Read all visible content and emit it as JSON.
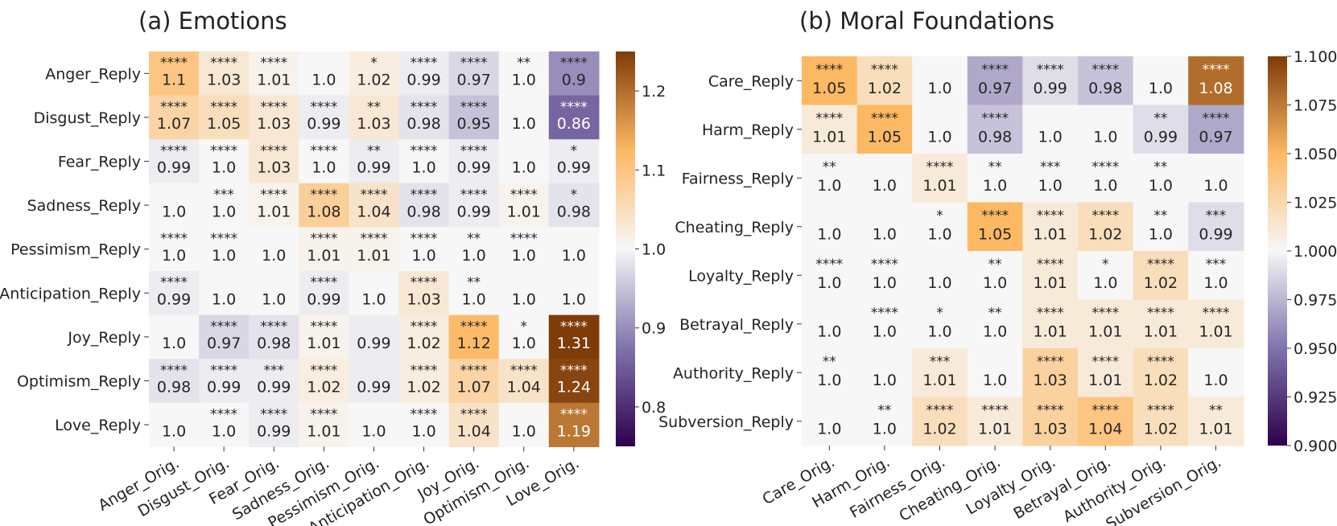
{
  "chart_data": [
    {
      "type": "heatmap",
      "title": "(a) Emotions",
      "rows": [
        "Anger_Reply",
        "Disgust_Reply",
        "Fear_Reply",
        "Sadness_Reply",
        "Pessimism_Reply",
        "Anticipation_Reply",
        "Joy_Reply",
        "Optimism_Reply",
        "Love_Reply"
      ],
      "cols": [
        "Anger_Orig.",
        "Disgust_Orig.",
        "Fear_Orig.",
        "Sadness_Orig.",
        "Pessimism_Orig.",
        "Anticipation_Orig.",
        "Joy_Orig.",
        "Optimism_Orig.",
        "Love_Orig."
      ],
      "values": [
        [
          "1.1",
          "1.03",
          "1.01",
          "1.0",
          "1.02",
          "0.99",
          "0.97",
          "1.0",
          "0.9"
        ],
        [
          "1.07",
          "1.05",
          "1.03",
          "0.99",
          "1.03",
          "0.98",
          "0.95",
          "1.0",
          "0.86"
        ],
        [
          "0.99",
          "1.0",
          "1.03",
          "1.0",
          "0.99",
          "1.0",
          "0.99",
          "1.0",
          "0.99"
        ],
        [
          "1.0",
          "1.0",
          "1.01",
          "1.08",
          "1.04",
          "0.98",
          "0.99",
          "1.01",
          "0.98"
        ],
        [
          "1.0",
          "1.0",
          "1.0",
          "1.01",
          "1.01",
          "1.0",
          "1.0",
          "1.0",
          "1.0"
        ],
        [
          "0.99",
          "1.0",
          "1.0",
          "0.99",
          "1.0",
          "1.03",
          "1.0",
          "1.0",
          "1.0"
        ],
        [
          "1.0",
          "0.97",
          "0.98",
          "1.01",
          "0.99",
          "1.02",
          "1.12",
          "1.0",
          "1.31"
        ],
        [
          "0.98",
          "0.99",
          "0.99",
          "1.02",
          "0.99",
          "1.02",
          "1.07",
          "1.04",
          "1.24"
        ],
        [
          "1.0",
          "1.0",
          "0.99",
          "1.01",
          "1.0",
          "1.0",
          "1.04",
          "1.0",
          "1.19"
        ]
      ],
      "significance": [
        [
          "****",
          "****",
          "****",
          "",
          "*",
          "****",
          "****",
          "**",
          "****"
        ],
        [
          "****",
          "****",
          "****",
          "****",
          "**",
          "****",
          "****",
          "",
          "****"
        ],
        [
          "****",
          "****",
          "****",
          "****",
          "**",
          "****",
          "****",
          "",
          "*"
        ],
        [
          "",
          "***",
          "****",
          "****",
          "****",
          "****",
          "****",
          "****",
          "*"
        ],
        [
          "****",
          "****",
          "",
          "****",
          "****",
          "****",
          "**",
          "****",
          ""
        ],
        [
          "****",
          "",
          "",
          "****",
          "",
          "****",
          "**",
          "",
          ""
        ],
        [
          "",
          "****",
          "****",
          "****",
          "",
          "****",
          "****",
          "*",
          "****"
        ],
        [
          "****",
          "****",
          "***",
          "****",
          "",
          "****",
          "****",
          "****",
          "****"
        ],
        [
          "",
          "****",
          "****",
          "****",
          "",
          "****",
          "****",
          "",
          "****"
        ]
      ],
      "colorbar": {
        "min": 0.75,
        "max": 1.25,
        "center": 1.0,
        "ticks": [
          "0.8",
          "0.9",
          "1.0",
          "1.1",
          "1.2"
        ]
      }
    },
    {
      "type": "heatmap",
      "title": "(b) Moral Foundations",
      "rows": [
        "Care_Reply",
        "Harm_Reply",
        "Fairness_Reply",
        "Cheating_Reply",
        "Loyalty_Reply",
        "Betrayal_Reply",
        "Authority_Reply",
        "Subversion_Reply"
      ],
      "cols": [
        "Care_Orig.",
        "Harm_Orig.",
        "Fairness_Orig.",
        "Cheating_Orig.",
        "Loyalty_Orig.",
        "Betrayal_Orig.",
        "Authority_Orig.",
        "Subversion_Orig."
      ],
      "values": [
        [
          "1.05",
          "1.02",
          "1.0",
          "0.97",
          "0.99",
          "0.98",
          "1.0",
          "1.08"
        ],
        [
          "1.01",
          "1.05",
          "1.0",
          "0.98",
          "1.0",
          "1.0",
          "0.99",
          "0.97"
        ],
        [
          "1.0",
          "1.0",
          "1.01",
          "1.0",
          "1.0",
          "1.0",
          "1.0",
          "1.0"
        ],
        [
          "1.0",
          "1.0",
          "1.0",
          "1.05",
          "1.01",
          "1.02",
          "1.0",
          "0.99"
        ],
        [
          "1.0",
          "1.0",
          "1.0",
          "1.0",
          "1.01",
          "1.0",
          "1.02",
          "1.0"
        ],
        [
          "1.0",
          "1.0",
          "1.0",
          "1.0",
          "1.01",
          "1.01",
          "1.01",
          "1.01"
        ],
        [
          "1.0",
          "1.0",
          "1.01",
          "1.0",
          "1.03",
          "1.01",
          "1.02",
          "1.0"
        ],
        [
          "1.0",
          "1.0",
          "1.02",
          "1.01",
          "1.03",
          "1.04",
          "1.02",
          "1.01"
        ]
      ],
      "significance": [
        [
          "****",
          "****",
          "",
          "****",
          "****",
          "****",
          "",
          "****"
        ],
        [
          "****",
          "****",
          "",
          "****",
          "",
          "",
          "**",
          "****"
        ],
        [
          "**",
          "",
          "****",
          "**",
          "***",
          "****",
          "**",
          ""
        ],
        [
          "",
          "",
          "*",
          "****",
          "****",
          "****",
          "**",
          "***"
        ],
        [
          "****",
          "****",
          "",
          "**",
          "****",
          "*",
          "****",
          "***"
        ],
        [
          "",
          "****",
          "*",
          "**",
          "****",
          "****",
          "****",
          "****"
        ],
        [
          "**",
          "",
          "***",
          "",
          "****",
          "****",
          "****",
          ""
        ],
        [
          "",
          "**",
          "****",
          "****",
          "****",
          "****",
          "****",
          "**"
        ]
      ],
      "colorbar": {
        "min": 0.9,
        "max": 1.1,
        "center": 1.0,
        "ticks": [
          "0.900",
          "0.925",
          "0.950",
          "0.975",
          "1.000",
          "1.025",
          "1.050",
          "1.075",
          "1.100"
        ]
      }
    }
  ]
}
